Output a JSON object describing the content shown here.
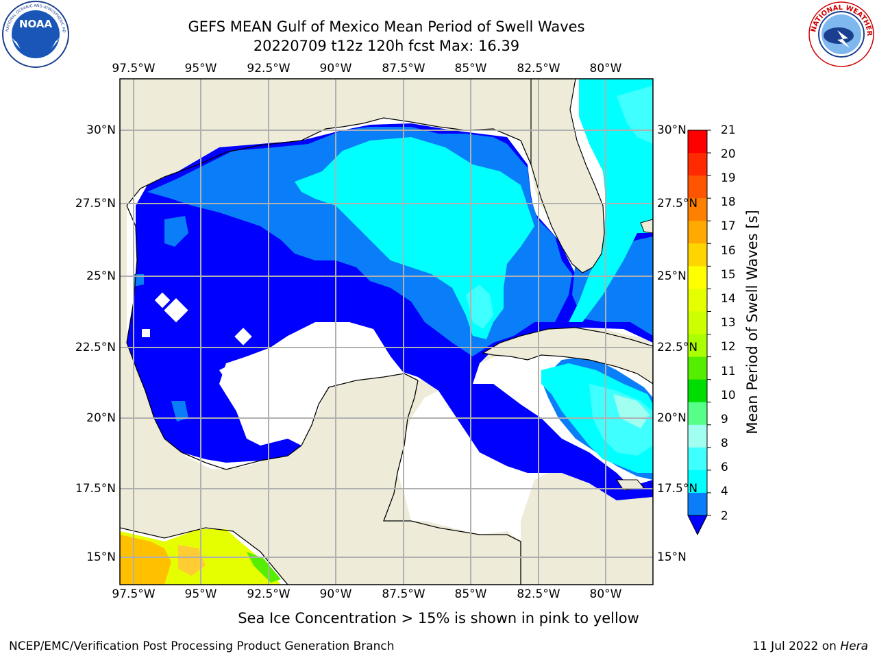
{
  "title": {
    "line1": "GEFS MEAN Gulf of Mexico Mean Period of Swell Waves",
    "line2": "20220709 t12z 120h fcst   Max: 16.39"
  },
  "map": {
    "lon_labels": [
      "97.5°W",
      "95°W",
      "92.5°W",
      "90°W",
      "87.5°W",
      "85°W",
      "82.5°W",
      "80°W"
    ],
    "lat_labels": [
      "30°N",
      "27.5°N",
      "25°N",
      "22.5°N",
      "20°N",
      "17.5°N",
      "15°N"
    ],
    "colors": {
      "land": "#eeecd9",
      "ocean_missing": "#ffffff",
      "grid": "#b0b0b0",
      "coast": "#000000"
    },
    "field_levels": [
      {
        "level": "2-4",
        "color": "#0000ff"
      },
      {
        "level": "4-6",
        "color": "#0a7ef8"
      },
      {
        "level": "6-8",
        "color": "#00ffff"
      },
      {
        "level": "8-9",
        "color": "#40ffff"
      },
      {
        "level": "9-10",
        "color": "#a0fff0"
      },
      {
        "level": "14-15",
        "color": "#e6ff00"
      },
      {
        "level": "16-17",
        "color": "#ffc000"
      }
    ]
  },
  "colorbar": {
    "title": "Mean Period of Swell Waves [s]",
    "ticks": [
      "21",
      "20",
      "19",
      "18",
      "17",
      "16",
      "15",
      "14",
      "13",
      "12",
      "11",
      "10",
      "9",
      "8",
      "6",
      "4",
      "2"
    ],
    "colors": [
      "#ff0000",
      "#ff2a00",
      "#ff5500",
      "#ff8000",
      "#ffaa00",
      "#ffd500",
      "#ffff00",
      "#e6ff00",
      "#ccff00",
      "#aaff00",
      "#55ee00",
      "#00dd00",
      "#55ff88",
      "#a0fff0",
      "#40ffff",
      "#00ffff",
      "#0a7ef8"
    ],
    "extend_color": "#0000ff"
  },
  "note": "Sea Ice Concentration > 15% is shown in pink to yellow",
  "footer": {
    "left": "NCEP/EMC/Verification Post Processing Product Generation Branch",
    "right_date": "11 Jul 2022 on ",
    "right_host": "Hera"
  },
  "logos": {
    "noaa": "NOAA",
    "noaa_ring": "NATIONAL OCEANIC AND ATMOSPHERIC ADMINISTRATION · U.S. DEPARTMENT OF COMMERCE",
    "nws_ring": "NATIONAL WEATHER SERVICE"
  }
}
